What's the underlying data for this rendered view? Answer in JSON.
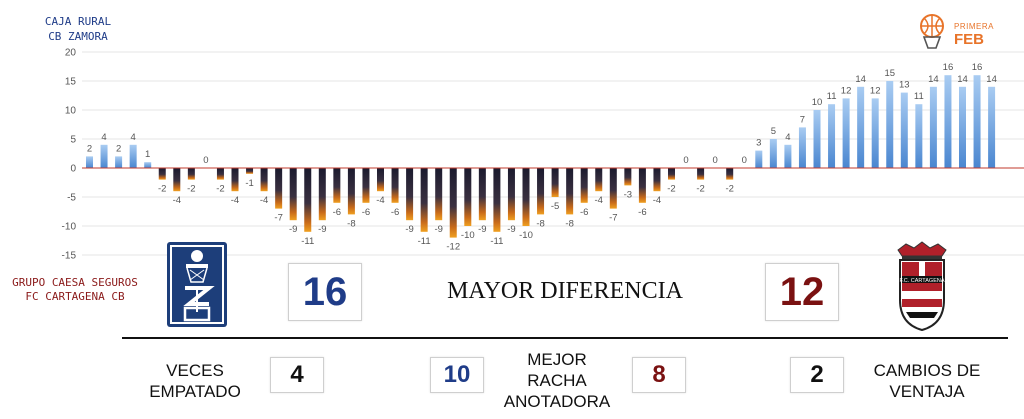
{
  "teams": {
    "top": {
      "line1": "CAJA RURAL",
      "line2": "CB ZAMORA",
      "color": "#1f3c88"
    },
    "bottom": {
      "line1": "GRUPO CAESA SEGUROS",
      "line2": "FC CARTAGENA CB",
      "color": "#8b1a1a"
    }
  },
  "league_logo": {
    "line1": "PRIMERA",
    "line2": "FEB",
    "color": "#e8742a"
  },
  "logos": {
    "left_icon": "club-crest-zamora",
    "right_icon": "club-crest-fc-cartagena",
    "right_text": "F.C. CARTAGENA"
  },
  "stats": {
    "max_diff_label": "MAYOR DIFERENCIA",
    "max_diff_top": "16",
    "max_diff_bottom": "12",
    "ties_label_1": "VECES",
    "ties_label_2": "EMPATADO",
    "ties_value": "4",
    "run_label_1": "MEJOR",
    "run_label_2": "RACHA",
    "run_label_3": "ANOTADORA",
    "run_top": "10",
    "run_bottom": "8",
    "lead_changes_label_1": "CAMBIOS DE",
    "lead_changes_label_2": "VENTAJA",
    "lead_changes_value": "2"
  },
  "chart_data": {
    "type": "bar",
    "title": "",
    "xlabel": "",
    "ylabel": "",
    "ylim": [
      -15,
      20
    ],
    "yticks": [
      -15,
      -10,
      -5,
      0,
      5,
      10,
      15,
      20
    ],
    "grid": true,
    "positive_color": "#4a86d0",
    "negative_color": "#1a1a2e",
    "negative_tip_color": "#f0a020",
    "zero_line_color": "#c0392b",
    "values": [
      2,
      4,
      2,
      4,
      1,
      -2,
      -4,
      -2,
      0,
      -2,
      -4,
      -1,
      -4,
      -7,
      -9,
      -11,
      -9,
      -6,
      -8,
      -6,
      -4,
      -6,
      -9,
      -11,
      -9,
      -12,
      -10,
      -9,
      -11,
      -9,
      -10,
      -8,
      -5,
      -8,
      -6,
      -4,
      -7,
      -3,
      -6,
      -4,
      -2,
      0,
      -2,
      0,
      -2,
      0,
      3,
      5,
      4,
      7,
      10,
      11,
      12,
      14,
      12,
      15,
      13,
      11,
      14,
      16,
      14,
      16,
      14
    ]
  }
}
